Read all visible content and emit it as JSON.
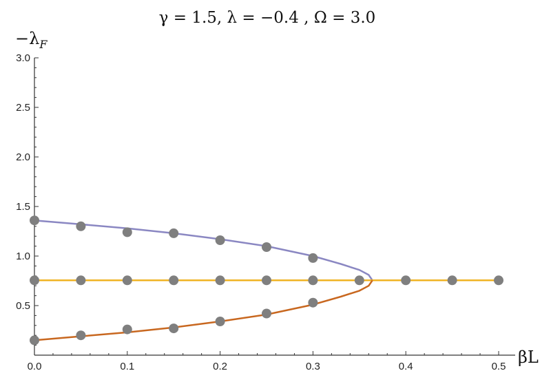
{
  "chart_data": {
    "type": "line",
    "title": "γ = 1.5, λ = −0.4 , Ω = 3.0",
    "xlabel": "βL",
    "ylabel": "−λF",
    "xlim": [
      0,
      0.5
    ],
    "ylim": [
      0,
      3.0
    ],
    "x_ticks": [
      "0.0",
      "0.1",
      "0.2",
      "0.3",
      "0.4",
      "0.5"
    ],
    "y_ticks": [
      "0.5",
      "1.0",
      "1.5",
      "2.0",
      "2.5",
      "3.0"
    ],
    "grid": false,
    "curves": [
      {
        "color": "#8a87c2",
        "x": [
          0.0,
          0.05,
          0.1,
          0.15,
          0.2,
          0.25,
          0.3,
          0.33,
          0.35,
          0.36,
          0.364
        ],
        "y": [
          1.36,
          1.32,
          1.28,
          1.23,
          1.17,
          1.1,
          1.0,
          0.92,
          0.86,
          0.81,
          0.755
        ]
      },
      {
        "color": "#f0b323",
        "x": [
          0.0,
          0.5
        ],
        "y": [
          0.755,
          0.755
        ]
      },
      {
        "color": "#c8671f",
        "x": [
          0.0,
          0.05,
          0.1,
          0.15,
          0.2,
          0.25,
          0.3,
          0.33,
          0.35,
          0.36,
          0.364
        ],
        "y": [
          0.15,
          0.19,
          0.23,
          0.28,
          0.34,
          0.41,
          0.51,
          0.59,
          0.65,
          0.7,
          0.755
        ]
      }
    ],
    "points": {
      "color": "#7f7f7f",
      "data": [
        [
          0.0,
          1.36
        ],
        [
          0.05,
          1.3
        ],
        [
          0.1,
          1.24
        ],
        [
          0.15,
          1.23
        ],
        [
          0.2,
          1.16
        ],
        [
          0.25,
          1.09
        ],
        [
          0.3,
          0.98
        ],
        [
          0.0,
          0.755
        ],
        [
          0.05,
          0.755
        ],
        [
          0.1,
          0.755
        ],
        [
          0.15,
          0.755
        ],
        [
          0.2,
          0.755
        ],
        [
          0.25,
          0.755
        ],
        [
          0.3,
          0.755
        ],
        [
          0.35,
          0.755
        ],
        [
          0.4,
          0.755
        ],
        [
          0.45,
          0.755
        ],
        [
          0.5,
          0.755
        ],
        [
          0.0,
          0.15
        ],
        [
          0.05,
          0.2
        ],
        [
          0.1,
          0.26
        ],
        [
          0.15,
          0.27
        ],
        [
          0.2,
          0.34
        ],
        [
          0.25,
          0.42
        ],
        [
          0.3,
          0.53
        ]
      ]
    }
  }
}
